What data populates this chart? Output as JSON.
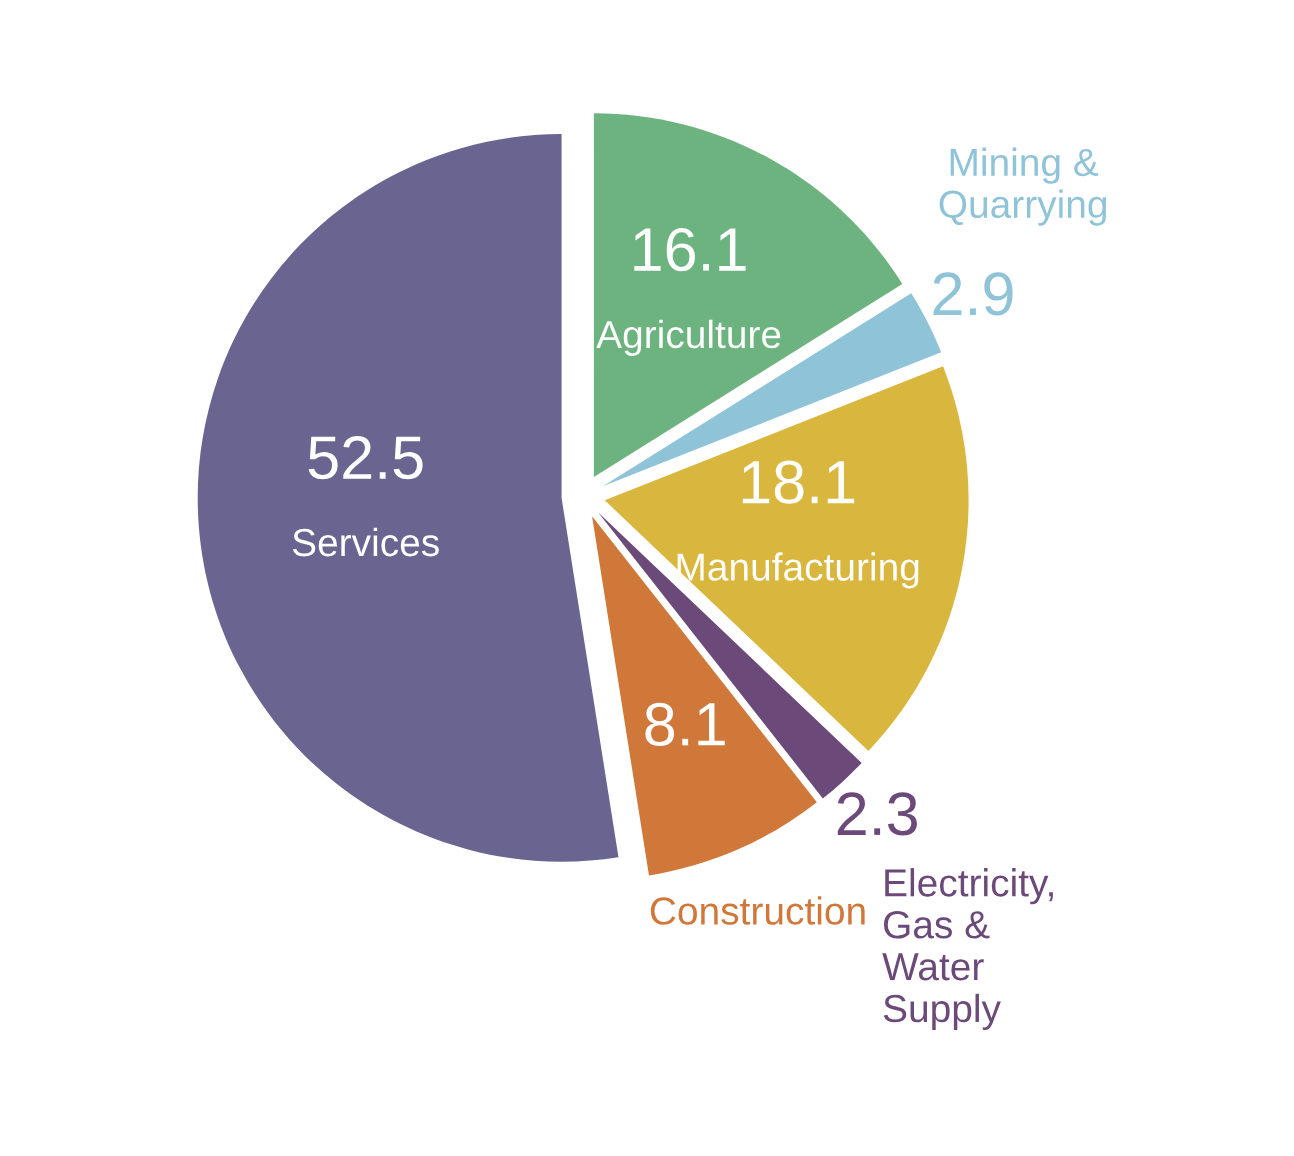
{
  "chart_data": {
    "type": "pie",
    "categories": [
      "Agriculture",
      "Mining &\nQuarrying",
      "Manufacturing",
      "Electricity,\nGas &\nWater\nSupply",
      "Construction",
      "Services"
    ],
    "values": [
      16.1,
      2.9,
      18.1,
      2.3,
      8.1,
      52.5
    ],
    "colors": [
      "#6db37f",
      "#8fc3d8",
      "#d9b73f",
      "#6b4a7a",
      "#d0783a",
      "#6a6590"
    ],
    "data_labels": true
  }
}
